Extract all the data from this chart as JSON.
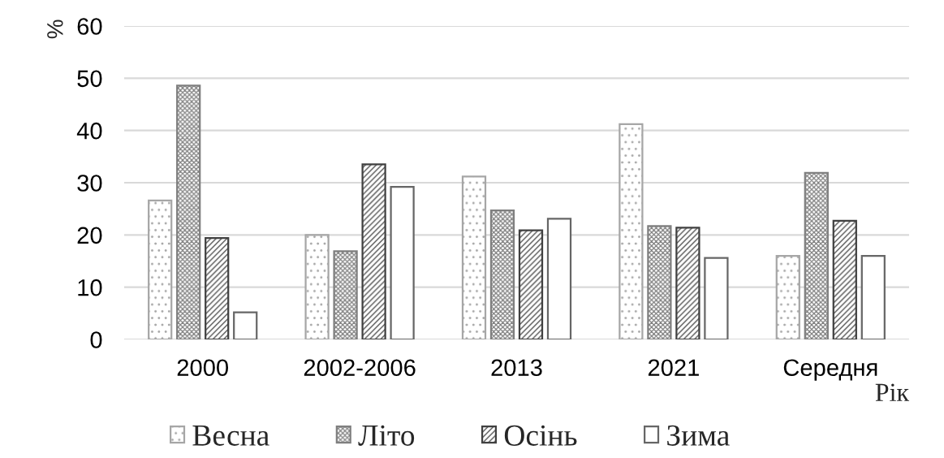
{
  "chart_data": {
    "type": "bar",
    "categories": [
      "2000",
      "2002-2006",
      "2013",
      "2021",
      "Середня"
    ],
    "xlabel": "Рік",
    "ylabel": "%",
    "ylim": [
      0,
      60
    ],
    "yticks": [
      0,
      10,
      20,
      30,
      40,
      50,
      60
    ],
    "grid": "y",
    "legend": "bottom",
    "series": [
      {
        "name": "Весна",
        "color": "#a6a6a6",
        "values": [
          26.6,
          20.0,
          31.2,
          41.2,
          16.0
        ]
      },
      {
        "name": "Літо",
        "color": "#7f7f7f",
        "values": [
          48.6,
          16.9,
          24.7,
          21.7,
          31.9
        ]
      },
      {
        "name": "Осінь",
        "color": "#404040",
        "values": [
          19.4,
          33.5,
          20.9,
          21.4,
          22.7
        ]
      },
      {
        "name": "Зима",
        "color": "#666666",
        "values": [
          5.2,
          29.2,
          23.1,
          15.6,
          16.0
        ]
      }
    ]
  }
}
